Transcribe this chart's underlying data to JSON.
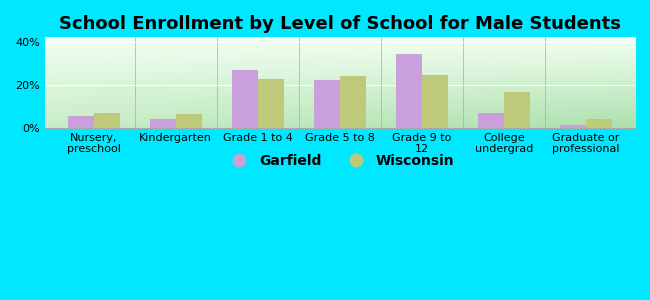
{
  "title": "School Enrollment by Level of School for Male Students",
  "categories": [
    "Nursery,\npreschool",
    "Kindergarten",
    "Grade 1 to 4",
    "Grade 5 to 8",
    "Grade 9 to\n12",
    "College\nundergrad",
    "Graduate or\nprofessional"
  ],
  "garfield": [
    5.5,
    4.0,
    27.0,
    22.0,
    34.5,
    7.0,
    1.5
  ],
  "wisconsin": [
    7.0,
    6.5,
    22.5,
    24.0,
    24.5,
    16.5,
    4.0
  ],
  "garfield_color": "#c9a0dc",
  "wisconsin_color": "#bec97a",
  "background_fig": "#00e8ff",
  "ylim": [
    0,
    42
  ],
  "yticks": [
    0,
    20,
    40
  ],
  "ytick_labels": [
    "0%",
    "20%",
    "40%"
  ],
  "bar_width": 0.32,
  "legend_labels": [
    "Garfield",
    "Wisconsin"
  ],
  "title_fontsize": 13,
  "tick_fontsize": 8,
  "legend_fontsize": 10
}
